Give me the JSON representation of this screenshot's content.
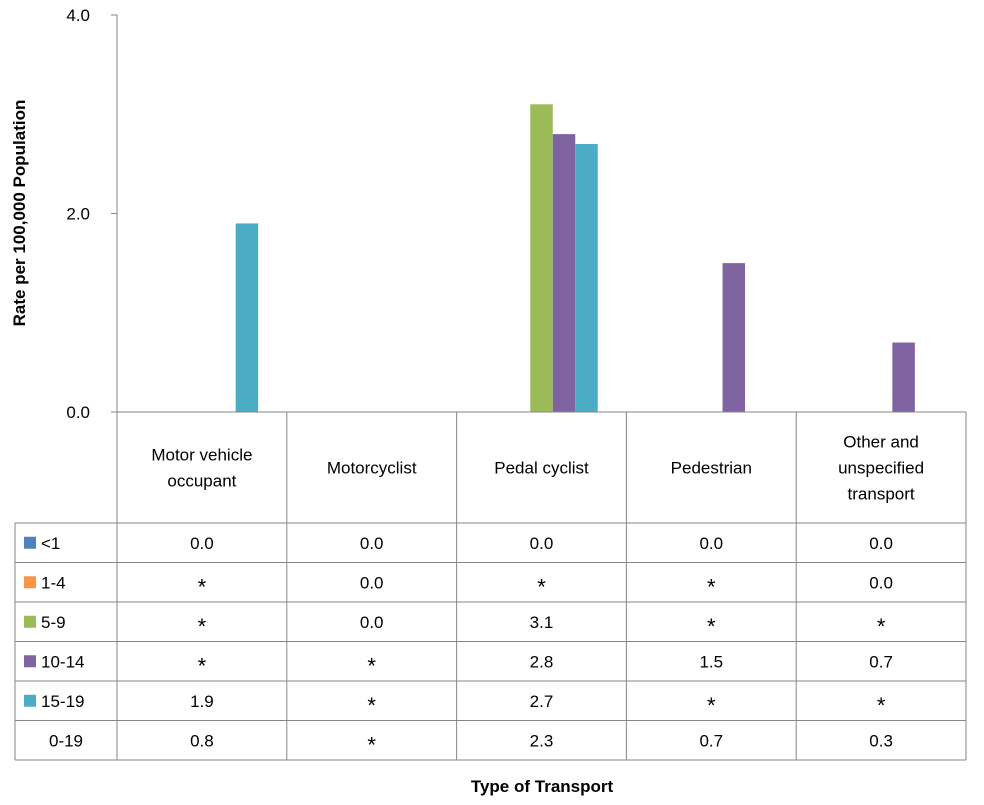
{
  "chart_data": {
    "type": "bar",
    "ylabel": "Rate per 100,000 Population",
    "xlabel": "Type of Transport",
    "ylim": [
      0,
      4
    ],
    "yticks": [
      "0.0",
      "2.0",
      "4.0"
    ],
    "categories": [
      "Motor vehicle occupant",
      "Motorcyclist",
      "Pedal cyclist",
      "Pedestrian",
      "Other and unspecified transport"
    ],
    "series": [
      {
        "name": "<1",
        "color": "#4f81bd",
        "values": [
          0.0,
          0.0,
          0.0,
          0.0,
          0.0
        ],
        "labels": [
          "0.0",
          "0.0",
          "0.0",
          "0.0",
          "0.0"
        ]
      },
      {
        "name": "1-4",
        "color": "#f79646",
        "values": [
          null,
          0.0,
          null,
          null,
          0.0
        ],
        "labels": [
          "*",
          "0.0",
          "*",
          "*",
          "0.0"
        ]
      },
      {
        "name": "5-9",
        "color": "#9bbb59",
        "values": [
          null,
          0.0,
          3.1,
          null,
          null
        ],
        "labels": [
          "*",
          "0.0",
          "3.1",
          "*",
          "*"
        ]
      },
      {
        "name": "10-14",
        "color": "#8064a2",
        "values": [
          null,
          null,
          2.8,
          1.5,
          0.7
        ],
        "labels": [
          "*",
          "*",
          "2.8",
          "1.5",
          "0.7"
        ]
      },
      {
        "name": "15-19",
        "color": "#4bacc6",
        "values": [
          1.9,
          null,
          2.7,
          null,
          null
        ],
        "labels": [
          "1.9",
          "*",
          "2.7",
          "*",
          "*"
        ]
      },
      {
        "name": "0-19",
        "color": null,
        "values": [
          0.8,
          null,
          2.3,
          0.7,
          0.3
        ],
        "labels": [
          "0.8",
          "*",
          "2.3",
          "0.7",
          "0.3"
        ]
      }
    ],
    "plotted_series": [
      "<1",
      "1-4",
      "5-9",
      "10-14",
      "15-19"
    ],
    "legend_placement": "data table below chart",
    "grid": false
  }
}
